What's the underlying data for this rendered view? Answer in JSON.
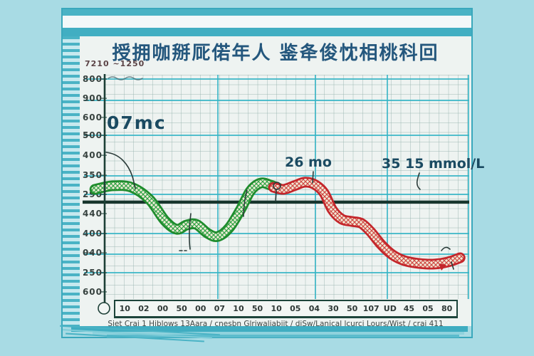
{
  "colors": {
    "background": "#a8dbe4",
    "frame_teal": "#4ab3c5",
    "frame_teal_dark": "#41aec2",
    "strip_white": "#f3f8f9",
    "paper": "#eef3f1",
    "grid_major": "#35b4c6",
    "axis_ink": "#1c3f36",
    "threshold": "#17352c",
    "title_ink": "#24577d",
    "annotation_ink": "#1a4a61",
    "band_fill": "#f2ecd9",
    "green_edge": "#1f8c2d",
    "red_edge": "#c4262b"
  },
  "title": "授拥咖掰厑偌年人 鉴夅俊忱相桃科回",
  "corner_label": "7210 ~1250",
  "caption": "Siet Crai 1 Hiblows 13Aara / cnesbn Glriwaliabiit / diSw/Lanical lcurci Lours/Wist / crai 411",
  "chart_data": {
    "type": "line",
    "title": "授拥咖掰厑偌年人 鉴夅俊忱相桃科回",
    "note_axis_units": "hand-drawn chart; tick labels are illegible glyphs, point coordinates given as percent of plot area (y down)",
    "x_axis": {
      "tick_labels": [
        "10",
        "02",
        "00",
        "50",
        "00",
        "07",
        "10",
        "50",
        "10",
        "05",
        "04",
        "30",
        "50",
        "107",
        "UD",
        "45",
        "05",
        "80"
      ]
    },
    "y_axis": {
      "ticks": [
        {
          "label": "800",
          "pos_pct": 1.9
        },
        {
          "label": "900",
          "pos_pct": 10.5
        },
        {
          "label": "600",
          "pos_pct": 19.0
        },
        {
          "label": "500",
          "pos_pct": 27.0
        },
        {
          "label": "400",
          "pos_pct": 35.9
        },
        {
          "label": "350",
          "pos_pct": 44.8
        },
        {
          "label": "290",
          "pos_pct": 53.3
        },
        {
          "label": "440",
          "pos_pct": 61.9
        },
        {
          "label": "400",
          "pos_pct": 70.8
        },
        {
          "label": "040",
          "pos_pct": 79.4
        },
        {
          "label": "250",
          "pos_pct": 88.3
        },
        {
          "label": "600",
          "pos_pct": 96.8
        }
      ]
    },
    "grid": {
      "h_major_pct": [
        1.9,
        11.4,
        27.0,
        45.1,
        53.3,
        70.8,
        80.0,
        88.3
      ],
      "v_major_pct": [
        31.1,
        57.9,
        77.7,
        100
      ]
    },
    "threshold_line": {
      "y_pct": 56.8,
      "color": "#17352c"
    },
    "series": [
      {
        "name": "upper-segment-green",
        "edge_color": "#1f8c2d",
        "hatch_color": "#2fa344",
        "points_pct": [
          [
            -2.7,
            51.1
          ],
          [
            2.2,
            49.5
          ],
          [
            7.4,
            50.2
          ],
          [
            12.3,
            55.6
          ],
          [
            16.6,
            65.1
          ],
          [
            19.8,
            68.9
          ],
          [
            22.5,
            67.0
          ],
          [
            25.2,
            66.7
          ],
          [
            28.4,
            70.8
          ],
          [
            31.1,
            72.1
          ],
          [
            34.2,
            68.3
          ],
          [
            37.4,
            60.0
          ],
          [
            40.1,
            51.7
          ],
          [
            42.9,
            48.3
          ],
          [
            45.6,
            49.2
          ],
          [
            48.1,
            50.8
          ]
        ]
      },
      {
        "name": "declining-segment-red",
        "edge_color": "#c4262b",
        "hatch_color": "#cf4a44",
        "points_pct": [
          [
            46.4,
            50.2
          ],
          [
            49.1,
            51.1
          ],
          [
            52.1,
            49.5
          ],
          [
            55.0,
            47.9
          ],
          [
            57.7,
            48.9
          ],
          [
            60.3,
            52.7
          ],
          [
            62.6,
            60.3
          ],
          [
            65.2,
            64.4
          ],
          [
            67.9,
            65.4
          ],
          [
            70.6,
            66.3
          ],
          [
            73.2,
            70.2
          ],
          [
            76.1,
            75.9
          ],
          [
            79.1,
            80.3
          ],
          [
            82.4,
            82.9
          ],
          [
            86.3,
            84.1
          ],
          [
            90.6,
            84.4
          ],
          [
            94.3,
            83.5
          ],
          [
            97.7,
            81.6
          ]
        ]
      }
    ],
    "annotations": [
      {
        "text": "07mc"
      },
      {
        "text": "26 mo"
      },
      {
        "text": "35 15 mmol/L"
      }
    ]
  }
}
